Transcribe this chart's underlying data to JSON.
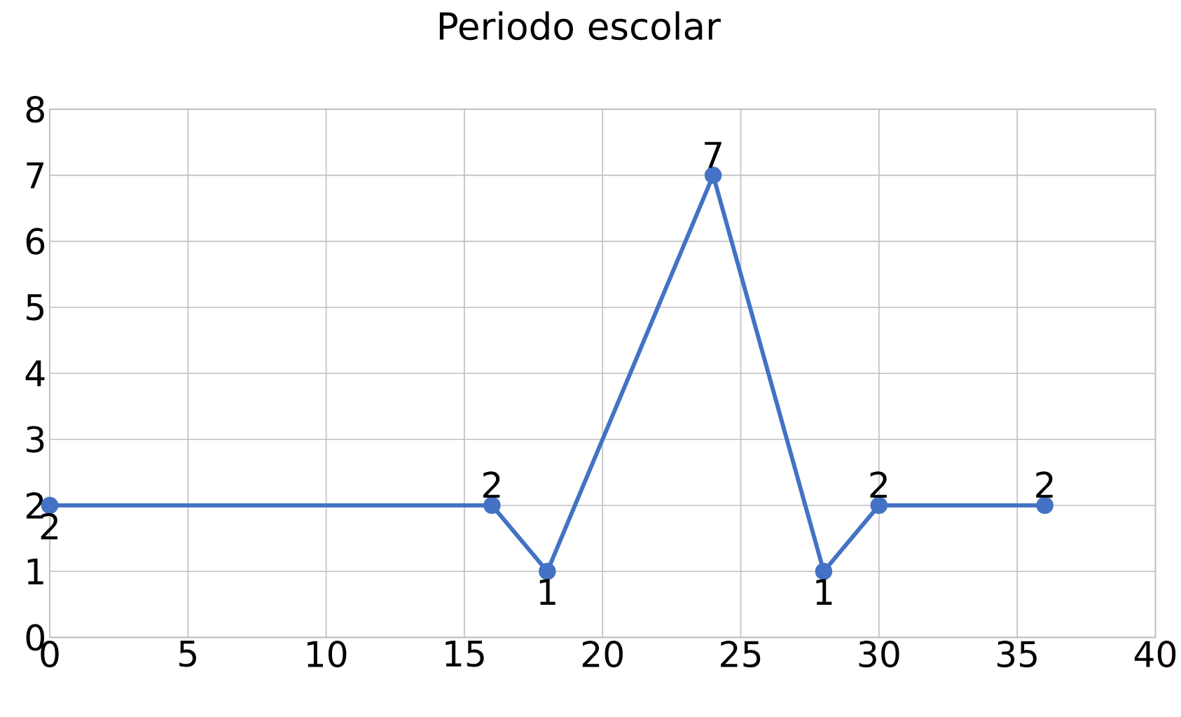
{
  "chart_data": {
    "type": "line",
    "title": "Periodo escolar",
    "x": [
      0,
      16,
      18,
      24,
      28,
      30,
      36
    ],
    "series": [
      {
        "color": "#4472c4",
        "values": [
          2,
          2,
          1,
          7,
          1,
          2,
          2
        ]
      }
    ],
    "xlim": [
      0,
      40
    ],
    "xticks": [
      0,
      5,
      10,
      15,
      20,
      25,
      30,
      35,
      40
    ],
    "ylim": [
      0,
      8
    ],
    "yticks": [
      0,
      1,
      2,
      3,
      4,
      5,
      6,
      7,
      8
    ],
    "grid": true,
    "marker": "circle",
    "line_style": "solid",
    "data_labels": true
  }
}
